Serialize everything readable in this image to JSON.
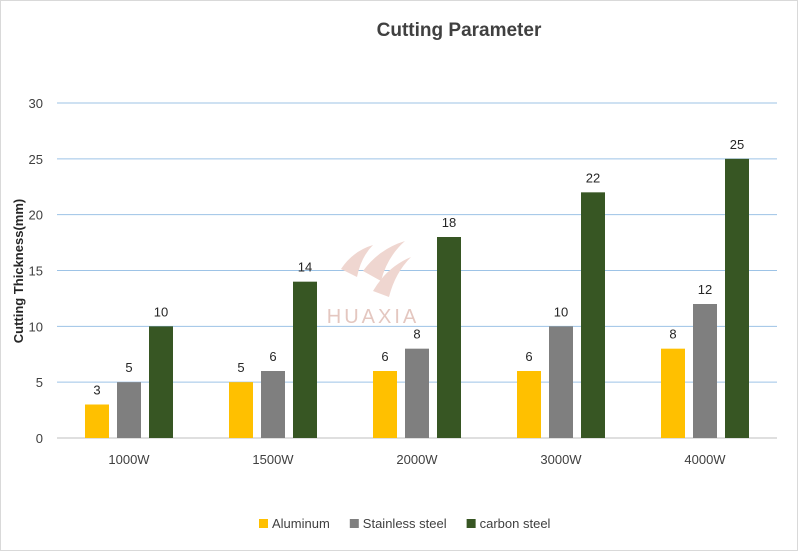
{
  "chart_data": {
    "type": "bar",
    "title": "Cutting Parameter",
    "xlabel": "",
    "ylabel": "Cutting Thickness(mm)",
    "ylim": [
      0,
      30
    ],
    "yticks": [
      0,
      5,
      10,
      15,
      20,
      25,
      30
    ],
    "categories": [
      "1000W",
      "1500W",
      "2000W",
      "3000W",
      "4000W"
    ],
    "series": [
      {
        "name": "Aluminum",
        "color": "#ffc000",
        "values": [
          3,
          5,
          6,
          6,
          8
        ]
      },
      {
        "name": "Stainless steel",
        "color": "#7f7f7f",
        "values": [
          5,
          6,
          8,
          10,
          12
        ]
      },
      {
        "name": "carbon steel",
        "color": "#375623",
        "values": [
          10,
          14,
          18,
          22,
          25
        ]
      }
    ],
    "grid": true,
    "legend_position": "bottom"
  },
  "watermark": {
    "text": "HUAXIA",
    "color": "#e4c7c0"
  }
}
